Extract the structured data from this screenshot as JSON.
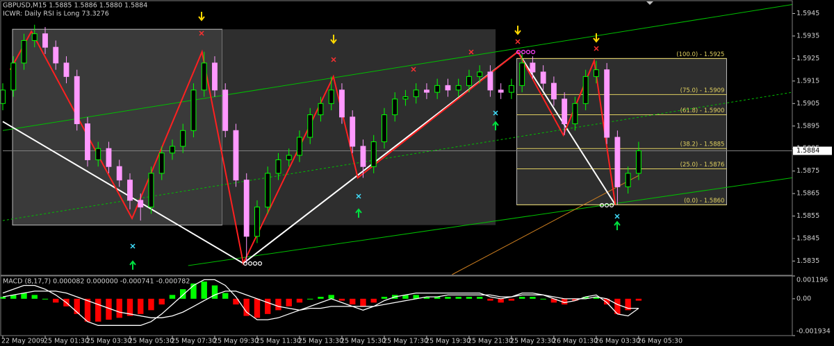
{
  "chart_data": [
    {
      "type": "candlestick",
      "title": "GBPUSD,M15  1.5885 1.5886 1.5880 1.5884",
      "subtitle": "ICWR: Daily RSI is Long 73.3276",
      "last_price": 1.5884,
      "up_color": "#00ff00",
      "down_color": "#ff99ff",
      "xlim": [
        0,
        74.5
      ],
      "xticks": [
        {
          "value": 0,
          "label": "22 May 2009"
        },
        {
          "value": 4,
          "label": "25 May 01:30"
        },
        {
          "value": 8,
          "label": "25 May 03:30"
        },
        {
          "value": 12,
          "label": "25 May 05:30"
        },
        {
          "value": 16,
          "label": "25 May 07:30"
        },
        {
          "value": 20,
          "label": "25 May 09:30"
        },
        {
          "value": 24,
          "label": "25 May 11:30"
        },
        {
          "value": 28,
          "label": "25 May 13:30"
        },
        {
          "value": 32,
          "label": "25 May 15:30"
        },
        {
          "value": 36,
          "label": "25 May 17:30"
        },
        {
          "value": 40,
          "label": "25 May 19:30"
        },
        {
          "value": 44,
          "label": "25 May 21:30"
        },
        {
          "value": 48,
          "label": "25 May 23:30"
        },
        {
          "value": 52,
          "label": "26 May 01:30"
        },
        {
          "value": 56,
          "label": "26 May 03:30"
        },
        {
          "value": 60,
          "label": "26 May 05:30"
        }
      ],
      "ylim": [
        1.5829,
        1.5951
      ],
      "yticks": [
        1.5945,
        1.5935,
        1.5925,
        1.5915,
        1.5905,
        1.5895,
        1.5885,
        1.5875,
        1.5865,
        1.5855,
        1.5845,
        1.5835
      ],
      "open": [
        1.5905,
        1.5911,
        1.5923,
        1.5933,
        1.5936,
        1.593,
        1.5923,
        1.5917,
        1.5896,
        1.588,
        1.5885,
        1.5877,
        1.5871,
        1.5862,
        1.5859,
        1.5874,
        1.5883,
        1.5886,
        1.5893,
        1.5911,
        1.5923,
        1.5911,
        1.5893,
        1.5871,
        1.5846,
        1.5859,
        1.5874,
        1.588,
        1.5882,
        1.589,
        1.59,
        1.5905,
        1.5911,
        1.5899,
        1.5886,
        1.5877,
        1.5888,
        1.59,
        1.5907,
        1.5908,
        1.5911,
        1.591,
        1.5913,
        1.5911,
        1.5913,
        1.5917,
        1.5919,
        1.5911,
        1.591,
        1.5913,
        1.5923,
        1.5919,
        1.5914,
        1.5907,
        1.5896,
        1.5905,
        1.5917,
        1.592,
        1.589,
        1.5868,
        1.5874
      ],
      "high": [
        1.5914,
        1.5926,
        1.5936,
        1.594,
        1.5939,
        1.5933,
        1.5926,
        1.592,
        1.5899,
        1.5888,
        1.5888,
        1.588,
        1.5874,
        1.5865,
        1.5877,
        1.5886,
        1.5889,
        1.5896,
        1.5914,
        1.5928,
        1.5926,
        1.5914,
        1.5896,
        1.5874,
        1.5862,
        1.5877,
        1.5883,
        1.5885,
        1.5893,
        1.5903,
        1.5908,
        1.5917,
        1.5914,
        1.5902,
        1.5889,
        1.5891,
        1.5903,
        1.591,
        1.5911,
        1.5914,
        1.5914,
        1.5916,
        1.5916,
        1.5916,
        1.592,
        1.5922,
        1.5922,
        1.5914,
        1.5916,
        1.5928,
        1.5926,
        1.5922,
        1.5917,
        1.591,
        1.5908,
        1.592,
        1.5924,
        1.5923,
        1.5893,
        1.5877,
        1.5888
      ],
      "low": [
        1.5902,
        1.5908,
        1.592,
        1.593,
        1.5927,
        1.592,
        1.5914,
        1.5893,
        1.5877,
        1.5877,
        1.5874,
        1.5868,
        1.5858,
        1.5853,
        1.5856,
        1.5871,
        1.588,
        1.5883,
        1.589,
        1.5908,
        1.5908,
        1.589,
        1.5868,
        1.5834,
        1.5843,
        1.5856,
        1.5871,
        1.5877,
        1.5879,
        1.5887,
        1.5897,
        1.5902,
        1.5896,
        1.5883,
        1.5872,
        1.5874,
        1.5885,
        1.5897,
        1.5904,
        1.5905,
        1.5907,
        1.5907,
        1.5908,
        1.5908,
        1.591,
        1.5914,
        1.5908,
        1.5907,
        1.5907,
        1.591,
        1.5916,
        1.5911,
        1.5904,
        1.5891,
        1.5893,
        1.5902,
        1.5914,
        1.5887,
        1.586,
        1.5865,
        1.5871
      ],
      "close": [
        1.5911,
        1.5923,
        1.5933,
        1.5936,
        1.593,
        1.5923,
        1.5917,
        1.5896,
        1.588,
        1.5885,
        1.5877,
        1.5871,
        1.5862,
        1.5859,
        1.5874,
        1.5883,
        1.5886,
        1.5893,
        1.5911,
        1.5923,
        1.5911,
        1.5893,
        1.5871,
        1.5846,
        1.5859,
        1.5874,
        1.588,
        1.5882,
        1.589,
        1.59,
        1.5905,
        1.5911,
        1.5899,
        1.5886,
        1.5877,
        1.5888,
        1.59,
        1.5907,
        1.5908,
        1.5911,
        1.591,
        1.5913,
        1.5911,
        1.5913,
        1.5917,
        1.5919,
        1.5911,
        1.591,
        1.5913,
        1.5923,
        1.5919,
        1.5914,
        1.5907,
        1.5896,
        1.5905,
        1.5917,
        1.592,
        1.589,
        1.5868,
        1.5874,
        1.5884
      ],
      "boxes": [
        {
          "x": [
            0.92,
            20.7
          ],
          "values": [
            1.5851,
            1.5938
          ],
          "fill": "#3a3a3a",
          "stroke": "#bbbbbb"
        },
        {
          "x": [
            20.7,
            46.5
          ],
          "values": [
            1.5851,
            1.5938
          ],
          "fill": "#2e2e2e",
          "stroke": "none"
        },
        {
          "x": [
            48.5,
            68.3
          ],
          "values": [
            1.586,
            1.5925
          ],
          "fill": "#2e2e2e",
          "stroke": "#bbbbbb"
        }
      ],
      "fib": {
        "x": [
          48.5,
          68.3
        ],
        "color": "#e0d060",
        "levels": [
          {
            "value": 1.5925,
            "label": "(100.0) - 1.5925"
          },
          {
            "value": 1.5909,
            "label": "(75.0) - 1.5909"
          },
          {
            "value": 1.59,
            "label": "(61.8) - 1.5900"
          },
          {
            "value": 1.5885,
            "label": "(38.2) - 1.5885"
          },
          {
            "value": 1.5876,
            "label": "(25.0) - 1.5876"
          },
          {
            "value": 1.586,
            "label": "(0.0) - 1.5860"
          }
        ]
      },
      "lines": [
        {
          "color": "#00c000",
          "dash": false,
          "x": [
            0,
            74.5
          ],
          "values": [
            1.5893,
            1.5949
          ]
        },
        {
          "color": "#00c000",
          "dash": true,
          "x": [
            0,
            74.5
          ],
          "values": [
            1.5853,
            1.591
          ]
        },
        {
          "color": "#00c000",
          "dash": false,
          "x": [
            17.5,
            74.5
          ],
          "values": [
            1.5833,
            1.5872
          ]
        },
        {
          "color": "#d08020",
          "dash": false,
          "x": [
            42.4,
            60
          ],
          "values": [
            1.5829,
            1.5873
          ]
        },
        {
          "color": "#ffffff",
          "dash": false,
          "x": [
            0,
            22.7,
            48.6,
            57.8
          ],
          "values": [
            1.5897,
            1.5834,
            1.5928,
            1.586
          ]
        },
        {
          "color": "#ff2020",
          "dash": false,
          "x": [
            0.7,
            2.7,
            12.2,
            18.8,
            22.7,
            31.2,
            33.5,
            48.6,
            52.9,
            55.8,
            57.8
          ],
          "values": [
            1.592,
            1.5937,
            1.5854,
            1.5928,
            1.5834,
            1.5917,
            1.5872,
            1.5928,
            1.5891,
            1.5924,
            1.586
          ]
        }
      ]
    },
    {
      "type": "bar",
      "title": "MACD (8,17,7) 0.000082 0.000000 -0.000741 -0.000782",
      "up_color": "#00ff00",
      "down_color": "#ff0000",
      "ylim": [
        -0.001934,
        0.001196
      ],
      "yticks": [
        0.001196,
        {
          "value": 0,
          "label": "0.00"
        },
        -0.001934
      ],
      "values": [
        0.0001,
        0.0002,
        0.0003,
        0.0002,
        0,
        -0.0002,
        -0.0004,
        -0.0008,
        -0.0012,
        -0.0012,
        -0.0011,
        -0.001,
        -0.0009,
        -0.0008,
        -0.0006,
        -0.0003,
        0.0002,
        0.0005,
        0.0008,
        0.0009,
        0.0007,
        0.0003,
        -0.0003,
        -0.0009,
        -0.001,
        -0.0008,
        -0.0006,
        -0.0004,
        -0.0002,
        0,
        0.0001,
        0.0002,
        -0.0001,
        -0.0003,
        -0.0004,
        -0.0002,
        0.0001,
        0.0002,
        0.0002,
        0.0002,
        0.0001,
        0.0001,
        0.0001,
        0.0001,
        0.0001,
        0.0001,
        -0.0001,
        -0.0002,
        -0.0001,
        0.0001,
        0.0001,
        0,
        -0.0002,
        -0.0003,
        -0.0001,
        0.0001,
        0.0001,
        -0.0003,
        -0.0008,
        -0.0006,
        -0.0001
      ],
      "lines": [
        {
          "color": "#ffffff",
          "values": [
            0.0003,
            0.0005,
            0.0007,
            0.0007,
            0.0005,
            0.0002,
            -0.0002,
            -0.0007,
            -0.0012,
            -0.0014,
            -0.0014,
            -0.0014,
            -0.0014,
            -0.0014,
            -0.0012,
            -0.0008,
            -0.0003,
            0.0002,
            0.0007,
            0.001,
            0.001,
            0.0007,
            0.0001,
            -0.0007,
            -0.0011,
            -0.0011,
            -0.001,
            -0.0008,
            -0.0006,
            -0.0004,
            -0.0002,
            0,
            -0.0002,
            -0.0004,
            -0.0006,
            -0.0004,
            -0.0001,
            0.0001,
            0.0002,
            0.0003,
            0.0003,
            0.0003,
            0.0003,
            0.0003,
            0.0003,
            0.0003,
            0.0001,
            0,
            0.0001,
            0.0003,
            0.0003,
            0.0002,
            0,
            -0.0002,
            -0.0001,
            0.0001,
            0.0002,
            -0.0002,
            -0.0008,
            -0.0009,
            -0.0005
          ]
        },
        {
          "color": "#ffffff",
          "values": [
            0.0001,
            0.0002,
            0.0003,
            0.0004,
            0.0004,
            0.0004,
            0.0003,
            0.0001,
            -0.0001,
            -0.0003,
            -0.0005,
            -0.0007,
            -0.0008,
            -0.0009,
            -0.001,
            -0.001,
            -0.0009,
            -0.0007,
            -0.0004,
            -0.0001,
            0.0002,
            0.0004,
            0.0004,
            0.0002,
            0,
            -0.0002,
            -0.0004,
            -0.0005,
            -0.0006,
            -0.0005,
            -0.0005,
            -0.0004,
            -0.0004,
            -0.0004,
            -0.0004,
            -0.0004,
            -0.0003,
            -0.0002,
            -0.0001,
            0,
            0.0001,
            0.0001,
            0.0002,
            0.0002,
            0.0002,
            0.0002,
            0.0002,
            0.0001,
            0.0001,
            0.0002,
            0.0002,
            0.0002,
            0.0001,
            0,
            0,
            0,
            0.0001,
            0,
            -0.0003,
            -0.0005,
            -0.0005
          ]
        }
      ]
    }
  ]
}
